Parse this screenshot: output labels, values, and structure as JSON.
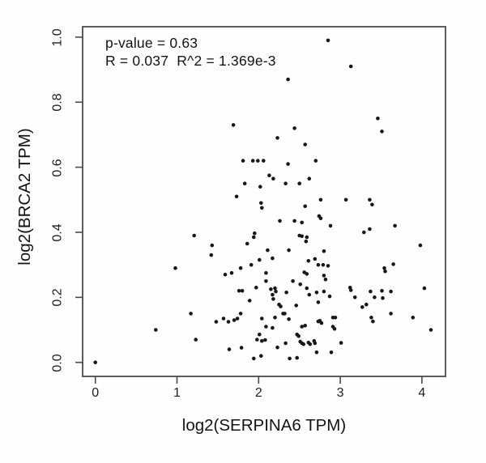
{
  "chart_data": {
    "type": "scatter",
    "title": "",
    "xlabel": "log2(SERPINA6 TPM)",
    "ylabel": "log2(BRCA2 TPM)",
    "annotation_lines": [
      "p-value = 0.63",
      "R = 0.037  R^2 = 1.369e-3"
    ],
    "x_ticks": [
      0,
      1,
      2,
      3,
      4
    ],
    "y_ticks": [
      "0.0",
      "0.2",
      "0.4",
      "0.6",
      "0.8",
      "1.0"
    ],
    "xlim": [
      -0.156,
      4.289
    ],
    "ylim": [
      -0.043,
      1.032
    ],
    "grid": false,
    "legend": "none",
    "point_color": "#181818",
    "axis_color": "#4a4a4a",
    "points": [
      [
        2.85,
        0.99
      ],
      [
        3.13,
        0.91
      ],
      [
        2.36,
        0.87
      ],
      [
        3.46,
        0.75
      ],
      [
        1.69,
        0.73
      ],
      [
        2.44,
        0.72
      ],
      [
        3.51,
        0.71
      ],
      [
        2.23,
        0.69
      ],
      [
        2.57,
        0.67
      ],
      [
        1.81,
        0.62
      ],
      [
        1.93,
        0.62
      ],
      [
        1.99,
        0.62
      ],
      [
        2.06,
        0.62
      ],
      [
        2.36,
        0.61
      ],
      [
        2.7,
        0.62
      ],
      [
        2.13,
        0.575
      ],
      [
        2.18,
        0.565
      ],
      [
        2.62,
        0.565
      ],
      [
        1.83,
        0.55
      ],
      [
        2.33,
        0.55
      ],
      [
        2.5,
        0.55
      ],
      [
        2.02,
        0.54
      ],
      [
        1.73,
        0.51
      ],
      [
        2.76,
        0.5
      ],
      [
        3.07,
        0.5
      ],
      [
        3.36,
        0.5
      ],
      [
        2.03,
        0.49
      ],
      [
        2.57,
        0.48
      ],
      [
        3.39,
        0.485
      ],
      [
        2.04,
        0.475
      ],
      [
        2.74,
        0.45
      ],
      [
        2.76,
        0.443
      ],
      [
        2.26,
        0.435
      ],
      [
        2.44,
        0.435
      ],
      [
        2.53,
        0.43
      ],
      [
        2.88,
        0.42
      ],
      [
        3.67,
        0.42
      ],
      [
        3.29,
        0.4
      ],
      [
        3.36,
        0.41
      ],
      [
        1.95,
        0.397
      ],
      [
        1.21,
        0.39
      ],
      [
        1.94,
        0.385
      ],
      [
        2.5,
        0.39
      ],
      [
        2.53,
        0.388
      ],
      [
        2.59,
        0.385
      ],
      [
        2.58,
        0.372
      ],
      [
        1.86,
        0.365
      ],
      [
        1.43,
        0.36
      ],
      [
        3.98,
        0.36
      ],
      [
        2.11,
        0.345
      ],
      [
        2.37,
        0.345
      ],
      [
        2.8,
        0.342
      ],
      [
        1.42,
        0.33
      ],
      [
        2.01,
        0.315
      ],
      [
        2.17,
        0.32
      ],
      [
        2.61,
        0.312
      ],
      [
        2.69,
        0.318
      ],
      [
        2.73,
        0.3
      ],
      [
        2.79,
        0.3
      ],
      [
        2.85,
        0.297
      ],
      [
        3.65,
        0.302
      ],
      [
        1.91,
        0.3
      ],
      [
        0.98,
        0.29
      ],
      [
        1.78,
        0.29
      ],
      [
        3.54,
        0.29
      ],
      [
        3.55,
        0.28
      ],
      [
        1.59,
        0.27
      ],
      [
        1.67,
        0.275
      ],
      [
        2.09,
        0.275
      ],
      [
        2.56,
        0.277
      ],
      [
        2.59,
        0.272
      ],
      [
        2.8,
        0.267
      ],
      [
        2.82,
        0.255
      ],
      [
        2.09,
        0.25
      ],
      [
        2.42,
        0.25
      ],
      [
        2.51,
        0.24
      ],
      [
        1.97,
        0.23
      ],
      [
        2.15,
        0.225
      ],
      [
        2.2,
        0.228
      ],
      [
        2.21,
        0.218
      ],
      [
        1.76,
        0.22
      ],
      [
        1.8,
        0.22
      ],
      [
        2.34,
        0.215
      ],
      [
        2.59,
        0.228
      ],
      [
        2.62,
        0.208
      ],
      [
        2.71,
        0.215
      ],
      [
        2.8,
        0.218
      ],
      [
        2.87,
        0.203
      ],
      [
        3.12,
        0.23
      ],
      [
        3.13,
        0.222
      ],
      [
        3.18,
        0.2
      ],
      [
        3.37,
        0.218
      ],
      [
        3.42,
        0.2
      ],
      [
        3.51,
        0.22
      ],
      [
        3.52,
        0.198
      ],
      [
        3.62,
        0.218
      ],
      [
        4.03,
        0.228
      ],
      [
        1.89,
        0.19
      ],
      [
        2.17,
        0.208
      ],
      [
        2.18,
        0.195
      ],
      [
        2.73,
        0.185
      ],
      [
        2.25,
        0.178
      ],
      [
        2.27,
        0.172
      ],
      [
        2.46,
        0.175
      ],
      [
        3.27,
        0.17
      ],
      [
        3.32,
        0.178
      ],
      [
        1.17,
        0.15
      ],
      [
        1.78,
        0.15
      ],
      [
        2.3,
        0.15
      ],
      [
        2.32,
        0.15
      ],
      [
        3.62,
        0.15
      ],
      [
        1.48,
        0.125
      ],
      [
        1.57,
        0.135
      ],
      [
        1.63,
        0.125
      ],
      [
        1.7,
        0.13
      ],
      [
        1.74,
        0.135
      ],
      [
        2.04,
        0.135
      ],
      [
        2.2,
        0.138
      ],
      [
        2.37,
        0.133
      ],
      [
        2.73,
        0.126
      ],
      [
        2.75,
        0.128
      ],
      [
        2.77,
        0.121
      ],
      [
        2.91,
        0.138
      ],
      [
        2.94,
        0.138
      ],
      [
        3.38,
        0.138
      ],
      [
        3.4,
        0.126
      ],
      [
        3.89,
        0.138
      ],
      [
        2.53,
        0.11
      ],
      [
        2.57,
        0.113
      ],
      [
        2.91,
        0.11
      ],
      [
        2.93,
        0.103
      ],
      [
        4.11,
        0.1
      ],
      [
        0.74,
        0.1
      ],
      [
        2.09,
        0.11
      ],
      [
        2.17,
        0.106
      ],
      [
        2.01,
        0.086
      ],
      [
        2.47,
        0.086
      ],
      [
        2.49,
        0.081
      ],
      [
        1.23,
        0.07
      ],
      [
        1.98,
        0.07
      ],
      [
        2.04,
        0.066
      ],
      [
        2.08,
        0.069
      ],
      [
        2.51,
        0.064
      ],
      [
        2.68,
        0.066
      ],
      [
        3.01,
        0.06
      ],
      [
        2.33,
        0.059
      ],
      [
        2.53,
        0.059
      ],
      [
        2.55,
        0.056
      ],
      [
        2.61,
        0.061
      ],
      [
        2.63,
        0.056
      ],
      [
        2.69,
        0.059
      ],
      [
        2.23,
        0.046
      ],
      [
        1.64,
        0.04
      ],
      [
        1.79,
        0.045
      ],
      [
        2.71,
        0.031
      ],
      [
        2.89,
        0.031
      ],
      [
        2.03,
        0.02
      ],
      [
        1.94,
        0.012
      ],
      [
        2.38,
        0.012
      ],
      [
        2.47,
        0.014
      ],
      [
        0.0,
        0.0
      ]
    ]
  }
}
